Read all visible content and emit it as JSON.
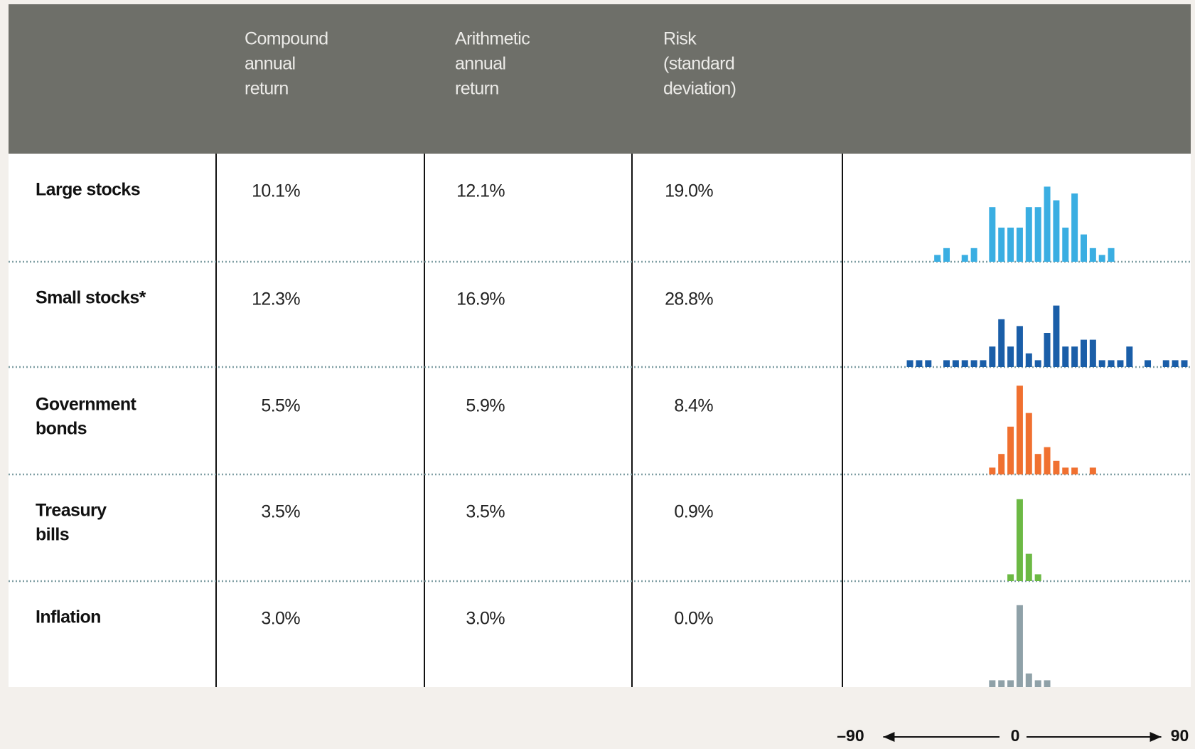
{
  "table": {
    "columns": [
      [
        "Compound",
        "annual",
        "return"
      ],
      [
        "Arithmetic",
        "annual",
        "return"
      ],
      [
        "Risk",
        "(standard",
        "deviation)"
      ]
    ],
    "bins": [
      -60,
      -55,
      -50,
      -45,
      -40,
      -35,
      -30,
      -25,
      -20,
      -15,
      -10,
      -5,
      0,
      5,
      10,
      15,
      20,
      25,
      30,
      35,
      40,
      45,
      50,
      55,
      60,
      65,
      70,
      75,
      80,
      85,
      90,
      95
    ],
    "rows": [
      {
        "label": [
          "Large stocks"
        ],
        "values": [
          "10.1%",
          "12.1%",
          "19.0%"
        ],
        "color": "#3aaee2",
        "counts": [
          0,
          0,
          0,
          1,
          2,
          0,
          1,
          2,
          0,
          8,
          5,
          5,
          5,
          8,
          8,
          11,
          9,
          5,
          10,
          4,
          2,
          1,
          2,
          0,
          0,
          0,
          0,
          0,
          0,
          0,
          0
        ]
      },
      {
        "label": [
          "Small stocks*"
        ],
        "values": [
          "12.3%",
          "16.9%",
          "28.8%"
        ],
        "color": "#1a5ea8",
        "counts": [
          1,
          1,
          1,
          0,
          1,
          1,
          1,
          1,
          1,
          3,
          7,
          3,
          6,
          2,
          1,
          5,
          9,
          3,
          3,
          4,
          4,
          1,
          1,
          1,
          3,
          0,
          1,
          0,
          1,
          1,
          1
        ]
      },
      {
        "label": [
          "Government",
          "bonds"
        ],
        "values": [
          "5.5%",
          "5.9%",
          "8.4%"
        ],
        "color": "#f07030",
        "counts": [
          0,
          0,
          0,
          0,
          0,
          0,
          0,
          0,
          0,
          1,
          3,
          7,
          13,
          9,
          3,
          4,
          2,
          1,
          1,
          0,
          1,
          0,
          0,
          0,
          0,
          0,
          0,
          0,
          0,
          0,
          0
        ]
      },
      {
        "label": [
          "Treasury",
          "bills"
        ],
        "values": [
          "3.5%",
          "3.5%",
          "0.9%"
        ],
        "color": "#6cb944",
        "counts": [
          0,
          0,
          0,
          0,
          0,
          0,
          0,
          0,
          0,
          0,
          0,
          1,
          12,
          4,
          1,
          0,
          0,
          0,
          0,
          0,
          0,
          0,
          0,
          0,
          0,
          0,
          0,
          0,
          0,
          0,
          0
        ]
      },
      {
        "label": [
          "Inflation"
        ],
        "values": [
          "3.0%",
          "3.0%",
          "0.0%"
        ],
        "color": "#8fa1a8",
        "counts": [
          0,
          0,
          0,
          0,
          0,
          0,
          0,
          0,
          0,
          1,
          1,
          1,
          12,
          2,
          1,
          1,
          0,
          0,
          0,
          0,
          0,
          0,
          0,
          0,
          0,
          0,
          0,
          0,
          0,
          0,
          0
        ]
      }
    ],
    "axis": {
      "ticks": [
        {
          "value": -90,
          "label": "–90"
        },
        0,
        90
      ]
    }
  }
}
